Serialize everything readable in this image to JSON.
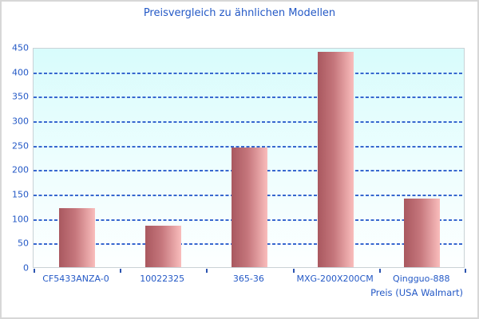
{
  "title": "Preisvergleich zu ähnlichen Modellen",
  "chart_data": {
    "type": "bar",
    "title": "Preisvergleich zu ähnlichen Modellen",
    "categories": [
      "CF5433ANZA-0",
      "10022325",
      "365-36",
      "MXG-200X200CM",
      "Qingguo-888"
    ],
    "values": [
      120,
      85,
      245,
      440,
      140
    ],
    "xlabel": "Preis (USA Walmart)",
    "ylabel": "",
    "ylim": [
      0,
      450
    ],
    "ytick_step": 50,
    "yticks": [
      0,
      50,
      100,
      150,
      200,
      250,
      300,
      350,
      400,
      450
    ],
    "grid": "horizontal-dashed",
    "legend": "none",
    "colors": {
      "title_text": "#2459c6",
      "axis_text": "#2459c6",
      "gridline": "#3767cf",
      "tick_mark": "#2d55b0",
      "bar_gradient_left": "#a9585f",
      "bar_gradient_right": "#f9bdbc",
      "plot_bg_top": "#d8fcfc",
      "plot_bg_bottom": "#fdffff",
      "plot_border": "#c9d2d6",
      "figure_border": "#d7d7d7",
      "background": "#ffffff"
    }
  }
}
